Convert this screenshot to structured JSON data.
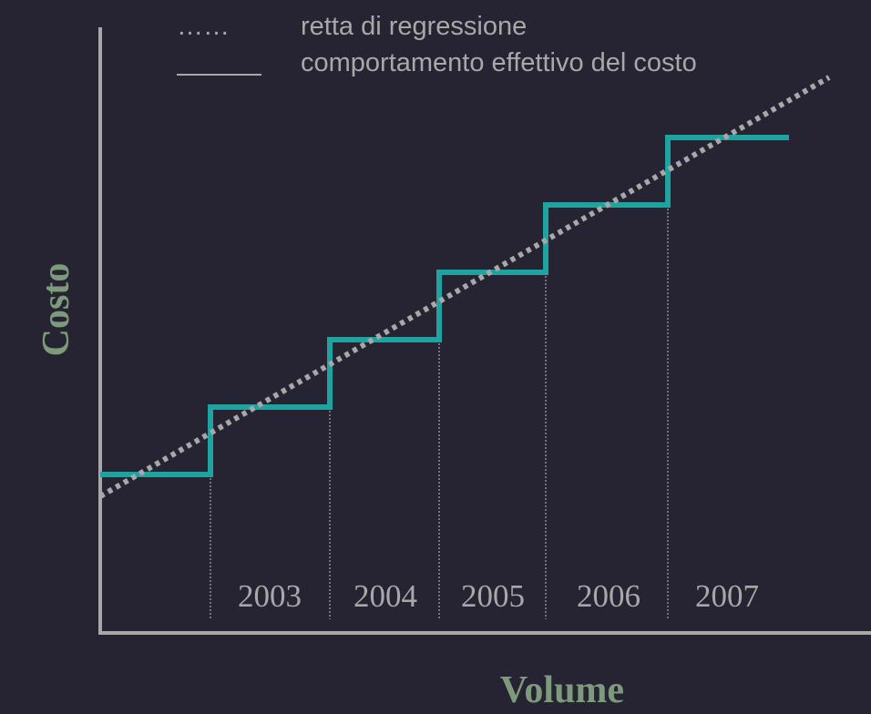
{
  "chart_data": {
    "type": "line",
    "xlabel": "Volume",
    "ylabel": "Costo",
    "categories": [
      "2003",
      "2004",
      "2005",
      "2006",
      "2007"
    ],
    "legend": {
      "regression_symbol": "……",
      "regression_label": "retta di regressione",
      "actual_label": "comportamento effettivo del costo"
    },
    "series": [
      {
        "name": "comportamento effettivo del costo",
        "style": "solid",
        "color": "#1fa3a0",
        "levels": [
          1,
          2,
          3,
          4,
          5,
          6
        ]
      },
      {
        "name": "retta di regressione",
        "style": "dotted",
        "color": "#a8a8a8"
      }
    ],
    "grid": false,
    "axis_color": "#a8a8a8",
    "background": "#262433"
  }
}
